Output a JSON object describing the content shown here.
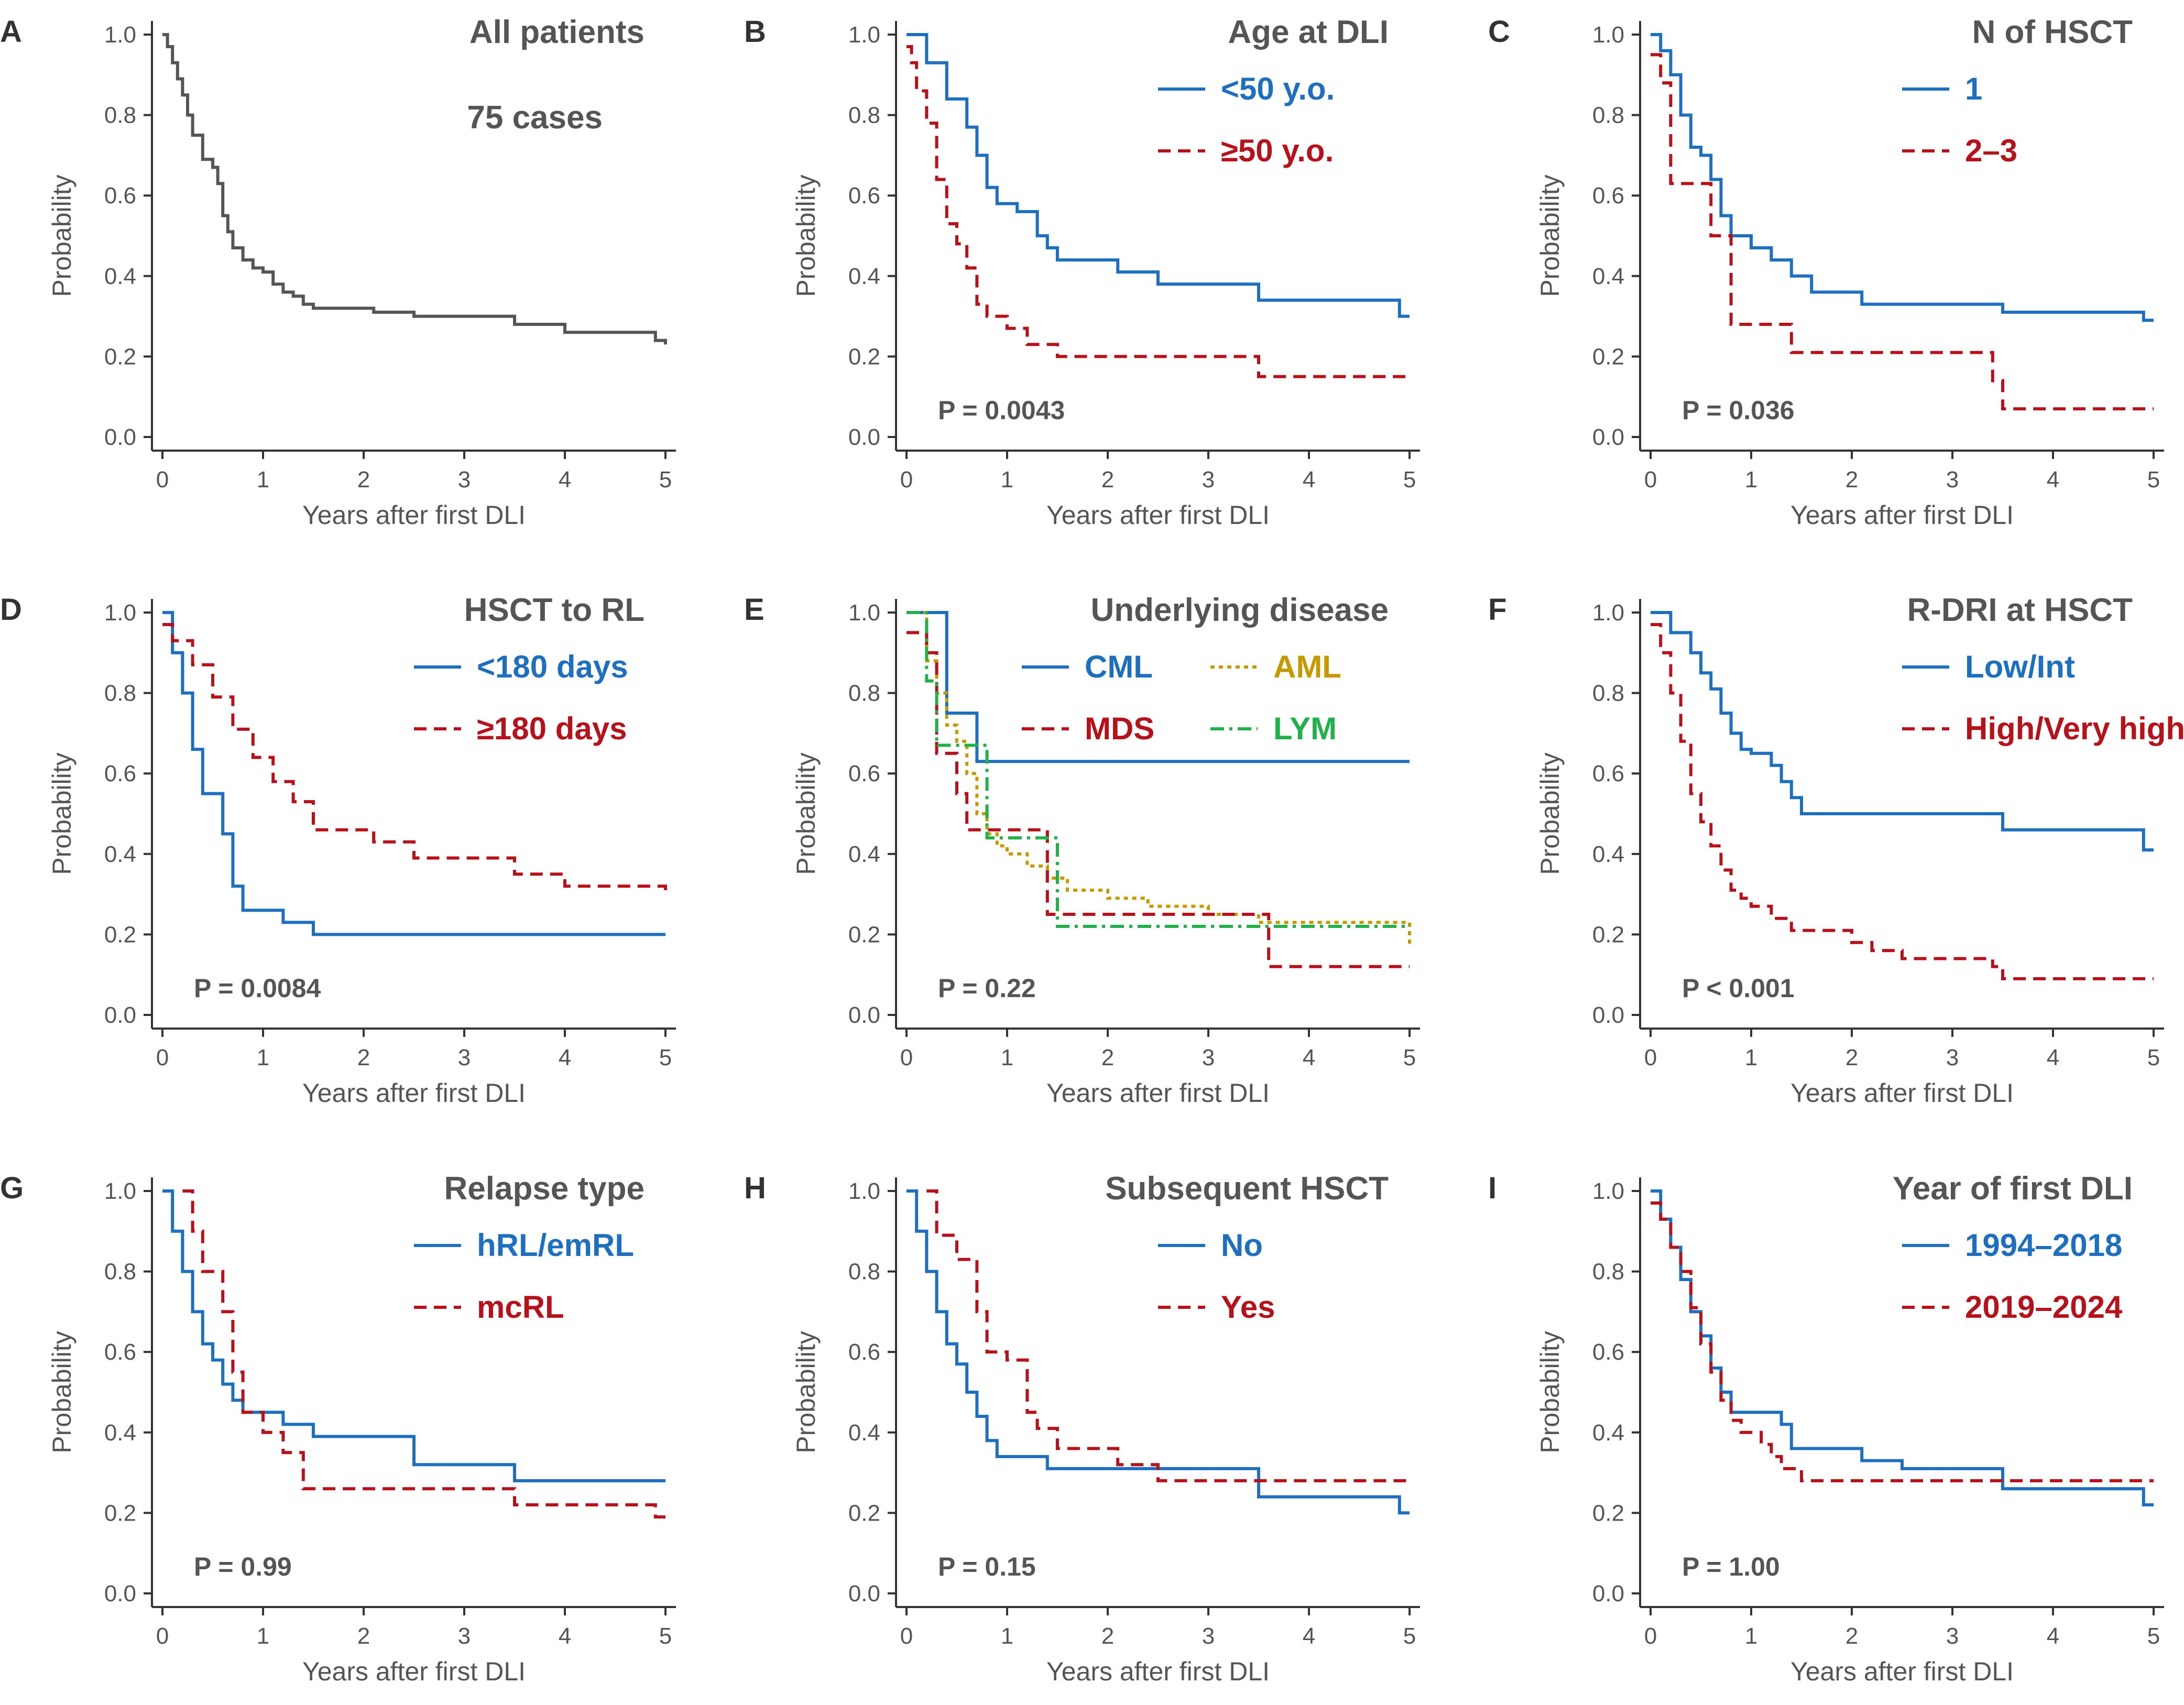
{
  "colors": {
    "gray": "#555555",
    "blue": "#1f6fbf",
    "red": "#b5121b",
    "gold": "#c49a00",
    "green": "#22b04b",
    "axis": "#333333"
  },
  "chart_data": [
    {
      "panel": "A",
      "type": "line",
      "title": "All patients",
      "subtitle": "75 cases",
      "xlabel": "Years after first DLI",
      "ylabel": "Probability",
      "xlim": [
        0,
        5
      ],
      "ylim": [
        0,
        1
      ],
      "xticks": [
        "0",
        "1",
        "2",
        "3",
        "4",
        "5"
      ],
      "yticks": [
        "0.0",
        "0.2",
        "0.4",
        "0.6",
        "0.8",
        "1.0"
      ],
      "p_value": null,
      "legend_cols": 1,
      "series": [
        {
          "name": "All patients",
          "color": "gray",
          "dash": "",
          "x": [
            0,
            0.05,
            0.1,
            0.15,
            0.2,
            0.25,
            0.3,
            0.4,
            0.5,
            0.55,
            0.6,
            0.65,
            0.7,
            0.8,
            0.9,
            1.0,
            1.1,
            1.2,
            1.3,
            1.4,
            1.5,
            2.1,
            2.5,
            3.5,
            4.0,
            4.9,
            5.0
          ],
          "y": [
            1.0,
            0.97,
            0.93,
            0.89,
            0.85,
            0.8,
            0.75,
            0.69,
            0.67,
            0.63,
            0.55,
            0.51,
            0.47,
            0.44,
            0.42,
            0.41,
            0.38,
            0.36,
            0.35,
            0.33,
            0.32,
            0.31,
            0.3,
            0.28,
            0.26,
            0.24,
            0.23
          ]
        }
      ]
    },
    {
      "panel": "B",
      "type": "line",
      "title": "Age at DLI",
      "xlabel": "Years after first DLI",
      "ylabel": "Probability",
      "xlim": [
        0,
        5
      ],
      "ylim": [
        0,
        1
      ],
      "xticks": [
        "0",
        "1",
        "2",
        "3",
        "4",
        "5"
      ],
      "yticks": [
        "0.0",
        "0.2",
        "0.4",
        "0.6",
        "0.8",
        "1.0"
      ],
      "p_value": "P = 0.0043",
      "legend_cols": 1,
      "series": [
        {
          "name": "<50 y.o.",
          "color": "blue",
          "dash": "",
          "x": [
            0,
            0.2,
            0.4,
            0.6,
            0.7,
            0.8,
            0.9,
            1.1,
            1.3,
            1.4,
            1.5,
            2.1,
            2.5,
            3.5,
            4.9,
            5.0
          ],
          "y": [
            1.0,
            0.93,
            0.84,
            0.77,
            0.7,
            0.62,
            0.58,
            0.56,
            0.5,
            0.47,
            0.44,
            0.41,
            0.38,
            0.34,
            0.3,
            0.3
          ]
        },
        {
          "name": "≥50 y.o.",
          "color": "red",
          "dash": "24,14",
          "x": [
            0,
            0.05,
            0.1,
            0.2,
            0.3,
            0.4,
            0.5,
            0.6,
            0.7,
            0.8,
            1.0,
            1.2,
            1.5,
            3.5,
            5.0
          ],
          "y": [
            0.97,
            0.93,
            0.86,
            0.78,
            0.64,
            0.53,
            0.48,
            0.42,
            0.33,
            0.3,
            0.27,
            0.23,
            0.2,
            0.15,
            0.15
          ]
        }
      ]
    },
    {
      "panel": "C",
      "type": "line",
      "title": "N of HSCT",
      "xlabel": "Years after first DLI",
      "ylabel": "Probability",
      "xlim": [
        0,
        5
      ],
      "ylim": [
        0,
        1
      ],
      "xticks": [
        "0",
        "1",
        "2",
        "3",
        "4",
        "5"
      ],
      "yticks": [
        "0.0",
        "0.2",
        "0.4",
        "0.6",
        "0.8",
        "1.0"
      ],
      "p_value": "P = 0.036",
      "legend_cols": 1,
      "series": [
        {
          "name": "1",
          "color": "blue",
          "dash": "",
          "x": [
            0,
            0.1,
            0.2,
            0.3,
            0.4,
            0.5,
            0.6,
            0.7,
            0.8,
            1.0,
            1.2,
            1.4,
            1.6,
            2.1,
            3.5,
            4.9,
            5.0
          ],
          "y": [
            1.0,
            0.96,
            0.9,
            0.8,
            0.72,
            0.7,
            0.64,
            0.55,
            0.5,
            0.47,
            0.44,
            0.4,
            0.36,
            0.33,
            0.31,
            0.29,
            0.29
          ]
        },
        {
          "name": "2–3",
          "color": "red",
          "dash": "24,14",
          "x": [
            0,
            0.1,
            0.2,
            0.6,
            0.8,
            1.2,
            1.4,
            3.4,
            3.5,
            5.0
          ],
          "y": [
            0.95,
            0.88,
            0.63,
            0.5,
            0.28,
            0.28,
            0.21,
            0.14,
            0.07,
            0.07
          ]
        }
      ]
    },
    {
      "panel": "D",
      "type": "line",
      "title": "HSCT to RL",
      "xlabel": "Years after first DLI",
      "ylabel": "Probability",
      "xlim": [
        0,
        5
      ],
      "ylim": [
        0,
        1
      ],
      "xticks": [
        "0",
        "1",
        "2",
        "3",
        "4",
        "5"
      ],
      "yticks": [
        "0.0",
        "0.2",
        "0.4",
        "0.6",
        "0.8",
        "1.0"
      ],
      "p_value": "P = 0.0084",
      "legend_cols": 1,
      "series": [
        {
          "name": "<180 days",
          "color": "blue",
          "dash": "",
          "x": [
            0,
            0.1,
            0.2,
            0.3,
            0.4,
            0.6,
            0.7,
            0.8,
            1.2,
            1.5,
            5.0
          ],
          "y": [
            1.0,
            0.9,
            0.8,
            0.66,
            0.55,
            0.45,
            0.32,
            0.26,
            0.23,
            0.2,
            0.2
          ]
        },
        {
          "name": "≥180 days",
          "color": "red",
          "dash": "24,14",
          "x": [
            0,
            0.1,
            0.3,
            0.5,
            0.7,
            0.9,
            1.1,
            1.3,
            1.5,
            2.1,
            2.5,
            3.5,
            4.0,
            5.0
          ],
          "y": [
            0.97,
            0.93,
            0.87,
            0.79,
            0.71,
            0.64,
            0.58,
            0.53,
            0.46,
            0.43,
            0.39,
            0.35,
            0.32,
            0.31
          ]
        }
      ]
    },
    {
      "panel": "E",
      "type": "line",
      "title": "Underlying disease",
      "xlabel": "Years after first DLI",
      "ylabel": "Probability",
      "xlim": [
        0,
        5
      ],
      "ylim": [
        0,
        1
      ],
      "xticks": [
        "0",
        "1",
        "2",
        "3",
        "4",
        "5"
      ],
      "yticks": [
        "0.0",
        "0.2",
        "0.4",
        "0.6",
        "0.8",
        "1.0"
      ],
      "p_value": "P = 0.22",
      "legend_cols": 2,
      "series": [
        {
          "name": "CML",
          "color": "blue",
          "dash": "",
          "x": [
            0,
            0.3,
            0.4,
            0.6,
            0.7,
            5.0
          ],
          "y": [
            1.0,
            1.0,
            0.75,
            0.75,
            0.63,
            0.63
          ]
        },
        {
          "name": "AML",
          "color": "gold",
          "dash": "8,8",
          "x": [
            0,
            0.2,
            0.3,
            0.4,
            0.5,
            0.6,
            0.7,
            0.8,
            0.9,
            1.0,
            1.2,
            1.4,
            1.6,
            2.0,
            2.4,
            3.0,
            3.5,
            5.0
          ],
          "y": [
            1.0,
            0.88,
            0.8,
            0.72,
            0.68,
            0.6,
            0.5,
            0.45,
            0.42,
            0.4,
            0.37,
            0.34,
            0.31,
            0.29,
            0.27,
            0.25,
            0.23,
            0.17
          ]
        },
        {
          "name": "MDS",
          "color": "red",
          "dash": "24,14",
          "x": [
            0,
            0.2,
            0.3,
            0.5,
            0.6,
            1.3,
            1.4,
            3.5,
            3.6,
            5.0
          ],
          "y": [
            0.95,
            0.9,
            0.65,
            0.55,
            0.46,
            0.46,
            0.25,
            0.25,
            0.12,
            0.12
          ]
        },
        {
          "name": "LYM",
          "color": "green",
          "dash": "26,10,6,10",
          "x": [
            0,
            0.2,
            0.3,
            0.7,
            0.8,
            1.5,
            5.0
          ],
          "y": [
            1.0,
            0.83,
            0.67,
            0.67,
            0.44,
            0.22,
            0.22
          ]
        }
      ]
    },
    {
      "panel": "F",
      "type": "line",
      "title": "R-DRI at HSCT",
      "xlabel": "Years after first DLI",
      "ylabel": "Probability",
      "xlim": [
        0,
        5
      ],
      "ylim": [
        0,
        1
      ],
      "xticks": [
        "0",
        "1",
        "2",
        "3",
        "4",
        "5"
      ],
      "yticks": [
        "0.0",
        "0.2",
        "0.4",
        "0.6",
        "0.8",
        "1.0"
      ],
      "p_value": "P < 0.001",
      "legend_cols": 1,
      "series": [
        {
          "name": "Low/Int",
          "color": "blue",
          "dash": "",
          "x": [
            0,
            0.2,
            0.4,
            0.5,
            0.6,
            0.7,
            0.8,
            0.9,
            1.0,
            1.2,
            1.3,
            1.4,
            1.5,
            3.5,
            4.9,
            5.0
          ],
          "y": [
            1.0,
            0.95,
            0.9,
            0.85,
            0.81,
            0.75,
            0.7,
            0.66,
            0.65,
            0.62,
            0.58,
            0.54,
            0.5,
            0.46,
            0.41,
            0.41
          ]
        },
        {
          "name": "High/Very high",
          "color": "red",
          "dash": "24,14",
          "x": [
            0,
            0.1,
            0.2,
            0.3,
            0.4,
            0.5,
            0.6,
            0.7,
            0.8,
            0.9,
            1.0,
            1.2,
            1.4,
            2.0,
            2.2,
            2.5,
            3.4,
            3.5,
            5.0
          ],
          "y": [
            0.97,
            0.9,
            0.8,
            0.68,
            0.55,
            0.48,
            0.42,
            0.36,
            0.31,
            0.29,
            0.27,
            0.24,
            0.21,
            0.18,
            0.16,
            0.14,
            0.12,
            0.09,
            0.09
          ]
        }
      ]
    },
    {
      "panel": "G",
      "type": "line",
      "title": "Relapse type",
      "xlabel": "Years after first DLI",
      "ylabel": "Probability",
      "xlim": [
        0,
        5
      ],
      "ylim": [
        0,
        1
      ],
      "xticks": [
        "0",
        "1",
        "2",
        "3",
        "4",
        "5"
      ],
      "yticks": [
        "0.0",
        "0.2",
        "0.4",
        "0.6",
        "0.8",
        "1.0"
      ],
      "p_value": "P = 0.99",
      "legend_cols": 1,
      "series": [
        {
          "name": "hRL/emRL",
          "color": "blue",
          "dash": "",
          "x": [
            0,
            0.1,
            0.2,
            0.3,
            0.4,
            0.5,
            0.6,
            0.7,
            0.8,
            1.2,
            1.5,
            2.5,
            3.5,
            5.0
          ],
          "y": [
            1.0,
            0.9,
            0.8,
            0.7,
            0.62,
            0.58,
            0.52,
            0.48,
            0.45,
            0.42,
            0.39,
            0.32,
            0.28,
            0.28
          ]
        },
        {
          "name": "mcRL",
          "color": "red",
          "dash": "24,14",
          "x": [
            0.2,
            0.3,
            0.4,
            0.6,
            0.7,
            0.8,
            1.0,
            1.2,
            1.4,
            3.5,
            4.9,
            5.0
          ],
          "y": [
            1.0,
            0.9,
            0.8,
            0.7,
            0.55,
            0.45,
            0.4,
            0.35,
            0.26,
            0.22,
            0.19,
            0.19
          ]
        }
      ]
    },
    {
      "panel": "H",
      "type": "line",
      "title": "Subsequent HSCT",
      "xlabel": "Years after first DLI",
      "ylabel": "Probability",
      "xlim": [
        0,
        5
      ],
      "ylim": [
        0,
        1
      ],
      "xticks": [
        "0",
        "1",
        "2",
        "3",
        "4",
        "5"
      ],
      "yticks": [
        "0.0",
        "0.2",
        "0.4",
        "0.6",
        "0.8",
        "1.0"
      ],
      "p_value": "P = 0.15",
      "legend_cols": 1,
      "series": [
        {
          "name": "No",
          "color": "blue",
          "dash": "",
          "x": [
            0,
            0.1,
            0.2,
            0.3,
            0.4,
            0.5,
            0.6,
            0.7,
            0.8,
            0.9,
            1.4,
            3.5,
            4.9,
            5.0
          ],
          "y": [
            1.0,
            0.9,
            0.8,
            0.7,
            0.62,
            0.57,
            0.5,
            0.44,
            0.38,
            0.34,
            0.31,
            0.24,
            0.2,
            0.2
          ]
        },
        {
          "name": "Yes",
          "color": "red",
          "dash": "24,14",
          "x": [
            0.2,
            0.3,
            0.5,
            0.7,
            0.8,
            1.0,
            1.2,
            1.3,
            1.5,
            2.1,
            2.5,
            5.0
          ],
          "y": [
            1.0,
            0.89,
            0.83,
            0.7,
            0.6,
            0.58,
            0.45,
            0.41,
            0.36,
            0.32,
            0.28,
            0.28
          ]
        }
      ]
    },
    {
      "panel": "I",
      "type": "line",
      "title": "Year of first DLI",
      "xlabel": "Years after first DLI",
      "ylabel": "Probability",
      "xlim": [
        0,
        5
      ],
      "ylim": [
        0,
        1
      ],
      "xticks": [
        "0",
        "1",
        "2",
        "3",
        "4",
        "5"
      ],
      "yticks": [
        "0.0",
        "0.2",
        "0.4",
        "0.6",
        "0.8",
        "1.0"
      ],
      "p_value": "P = 1.00",
      "legend_cols": 1,
      "series": [
        {
          "name": "1994–2018",
          "color": "blue",
          "dash": "",
          "x": [
            0,
            0.1,
            0.2,
            0.3,
            0.4,
            0.5,
            0.6,
            0.7,
            0.8,
            1.3,
            1.4,
            2.1,
            2.5,
            3.5,
            4.9,
            5.0
          ],
          "y": [
            1.0,
            0.93,
            0.86,
            0.78,
            0.7,
            0.64,
            0.56,
            0.5,
            0.45,
            0.42,
            0.36,
            0.33,
            0.31,
            0.26,
            0.22,
            0.22
          ]
        },
        {
          "name": "2019–2024",
          "color": "red",
          "dash": "24,14",
          "x": [
            0,
            0.1,
            0.2,
            0.3,
            0.4,
            0.5,
            0.6,
            0.7,
            0.8,
            0.9,
            1.1,
            1.2,
            1.3,
            1.5,
            5.0
          ],
          "y": [
            0.97,
            0.93,
            0.86,
            0.8,
            0.71,
            0.62,
            0.55,
            0.48,
            0.43,
            0.4,
            0.37,
            0.34,
            0.31,
            0.28,
            0.28
          ]
        }
      ]
    }
  ]
}
